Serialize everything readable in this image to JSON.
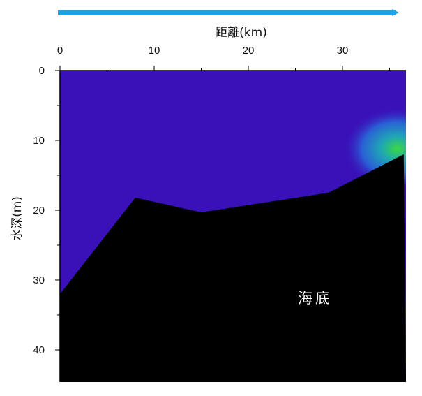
{
  "chart_data": {
    "type": "heatmap",
    "title": "",
    "xlabel": "距離(km)",
    "ylabel": "水深(m)",
    "x_ticks": [
      "0",
      "10",
      "20",
      "30"
    ],
    "y_ticks": [
      "0",
      "10",
      "20",
      "30",
      "40"
    ],
    "xlim": [
      0,
      36.5
    ],
    "ylim": [
      0,
      44.5
    ],
    "x_axis_position": "top",
    "y_axis_inverted": true,
    "grid": false,
    "direction_arrow": {
      "orientation": "left-to-right",
      "color": "#1aa3e8"
    },
    "background_color": "#3a10b8",
    "seabed": {
      "label": "海底",
      "color": "#000000",
      "profile": [
        {
          "x": 0,
          "y": 32
        },
        {
          "x": 8,
          "y": 18.2
        },
        {
          "x": 15,
          "y": 20.3
        },
        {
          "x": 28.5,
          "y": 17.5
        },
        {
          "x": 36.5,
          "y": 12
        }
      ]
    },
    "hotspot": {
      "x": 35.8,
      "y": 11.2,
      "colors": [
        "#39d845",
        "#1fa6b5",
        "#2a5fd6",
        "#3a10b8"
      ]
    }
  }
}
